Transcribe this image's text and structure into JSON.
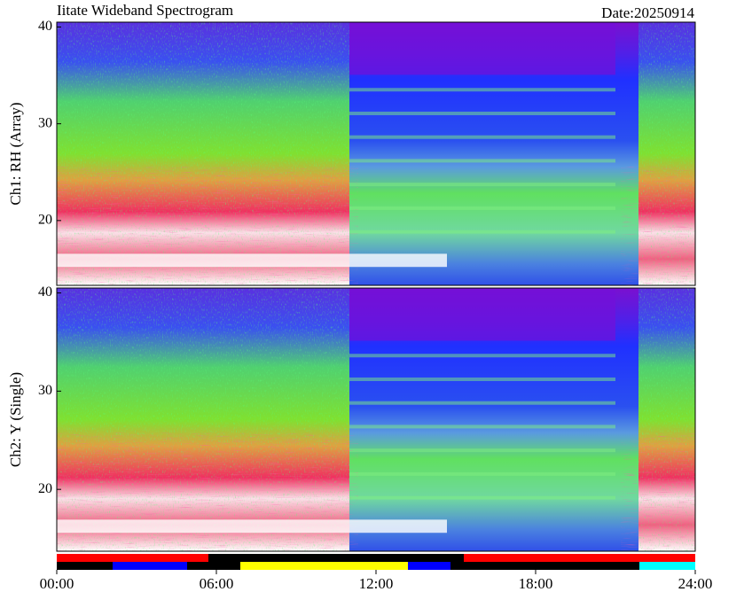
{
  "chart_data": [
    {
      "type": "spectrogram",
      "title": "Iitate Wideband Spectrogram",
      "subtitle": "Date:20250914",
      "ylabel": "Ch1: RH (Array)",
      "ylim": [
        13.3,
        40.5
      ],
      "yticks": [
        20,
        30,
        40
      ],
      "xlim": [
        0,
        24
      ]
    },
    {
      "type": "spectrogram",
      "ylabel": "Ch2: Y (Single)",
      "ylim": [
        13.7,
        40.5
      ],
      "yticks": [
        20,
        30,
        40
      ],
      "xlim": [
        0,
        24
      ],
      "xticks": [
        {
          "value": 0,
          "label": "00:00"
        },
        {
          "value": 6,
          "label": "06:00"
        },
        {
          "value": 12,
          "label": "12:00"
        },
        {
          "value": 18,
          "label": "18:00"
        },
        {
          "value": 24,
          "label": "24:00"
        }
      ],
      "bands": [
        [
          {
            "start": 0,
            "end": 5.7,
            "color": "#ff0000"
          },
          {
            "start": 5.7,
            "end": 15.3,
            "color": "#000000"
          },
          {
            "start": 15.3,
            "end": 24,
            "color": "#ff0000"
          }
        ],
        [
          {
            "start": 0,
            "end": 2.1,
            "color": "#000000"
          },
          {
            "start": 2.1,
            "end": 4.9,
            "color": "#0000ff"
          },
          {
            "start": 4.9,
            "end": 6.9,
            "color": "#000000"
          },
          {
            "start": 6.9,
            "end": 13.2,
            "color": "#ffff00"
          },
          {
            "start": 13.2,
            "end": 14.8,
            "color": "#0000ff"
          },
          {
            "start": 14.8,
            "end": 21.9,
            "color": "#000000"
          },
          {
            "start": 21.9,
            "end": 24,
            "color": "#00ffff"
          }
        ]
      ]
    }
  ]
}
